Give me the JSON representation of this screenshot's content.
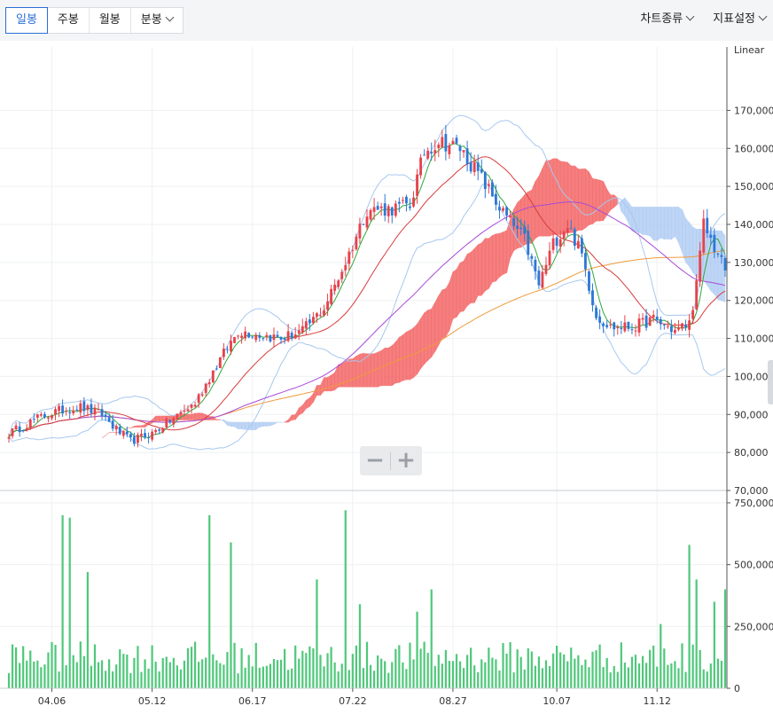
{
  "toolbar": {
    "tabs": [
      {
        "label": "일봉",
        "active": true
      },
      {
        "label": "주봉"
      },
      {
        "label": "월봉"
      },
      {
        "label": "분봉",
        "dropdown": true
      }
    ],
    "chart_type_label": "차트종류",
    "indicator_label": "지표설정"
  },
  "zoom": {
    "minus": "−",
    "plus": "+"
  },
  "colors": {
    "up": "#e8424a",
    "down": "#2d78d6",
    "volume": "#4fc87a",
    "ichimoku_red": "#f46868",
    "ichimoku_blue": "#a9c8f2",
    "ma5": "#2fa83e",
    "ma20": "#d83c3c",
    "ma60": "#a84ad8",
    "ma120": "#f09a3a",
    "bollinger": "#a8c8ee"
  },
  "chart_data": [
    {
      "type": "candlestick",
      "scale_label": "Linear",
      "ylim": [
        70000,
        175000
      ],
      "y_ticks": [
        70000,
        80000,
        90000,
        100000,
        110000,
        120000,
        130000,
        140000,
        150000,
        160000,
        170000
      ],
      "y_tick_labels": [
        "70,000",
        "80,000",
        "90,000",
        "100,000",
        "110,000",
        "120,000",
        "130,000",
        "140,000",
        "150,000",
        "160,000",
        "170,000"
      ],
      "x_labels": [
        "04.06",
        "05.12",
        "06.17",
        "07.22",
        "08.27",
        "10.07",
        "11.12"
      ],
      "overlays": [
        "ichimoku cloud",
        "bollinger bands",
        "moving averages"
      ],
      "anchors": [
        [
          0,
          85000
        ],
        [
          8,
          89000
        ],
        [
          14,
          91000
        ],
        [
          20,
          92000
        ],
        [
          26,
          90000
        ],
        [
          30,
          86000
        ],
        [
          34,
          83000
        ],
        [
          40,
          85000
        ],
        [
          46,
          89000
        ],
        [
          52,
          93000
        ],
        [
          58,
          103000
        ],
        [
          64,
          112000
        ],
        [
          70,
          111000
        ],
        [
          76,
          110000
        ],
        [
          82,
          112000
        ],
        [
          88,
          118000
        ],
        [
          94,
          130000
        ],
        [
          100,
          144000
        ],
        [
          106,
          144000
        ],
        [
          112,
          145000
        ],
        [
          116,
          159000
        ],
        [
          120,
          162000
        ],
        [
          126,
          160000
        ],
        [
          132,
          152000
        ],
        [
          138,
          143000
        ],
        [
          144,
          136000
        ],
        [
          148,
          124000
        ],
        [
          152,
          135000
        ],
        [
          156,
          140000
        ],
        [
          160,
          132000
        ],
        [
          164,
          116000
        ],
        [
          168,
          113000
        ],
        [
          174,
          113000
        ],
        [
          180,
          115000
        ],
        [
          186,
          112000
        ],
        [
          190,
          114000
        ],
        [
          192,
          124000
        ],
        [
          194,
          140000
        ],
        [
          197,
          134000
        ],
        [
          200,
          128000
        ]
      ]
    },
    {
      "type": "bar",
      "series_name": "volume",
      "ylim": [
        0,
        800000
      ],
      "y_ticks": [
        0,
        250000,
        500000,
        750000
      ],
      "y_tick_labels": [
        "0",
        "250,000",
        "500,000",
        "750,000"
      ],
      "spikes": [
        [
          15,
          700000
        ],
        [
          17,
          690000
        ],
        [
          22,
          470000
        ],
        [
          56,
          700000
        ],
        [
          62,
          590000
        ],
        [
          86,
          440000
        ],
        [
          94,
          720000
        ],
        [
          98,
          340000
        ],
        [
          114,
          310000
        ],
        [
          118,
          400000
        ],
        [
          182,
          260000
        ],
        [
          190,
          580000
        ],
        [
          192,
          440000
        ],
        [
          197,
          350000
        ],
        [
          200,
          400000
        ]
      ]
    }
  ]
}
